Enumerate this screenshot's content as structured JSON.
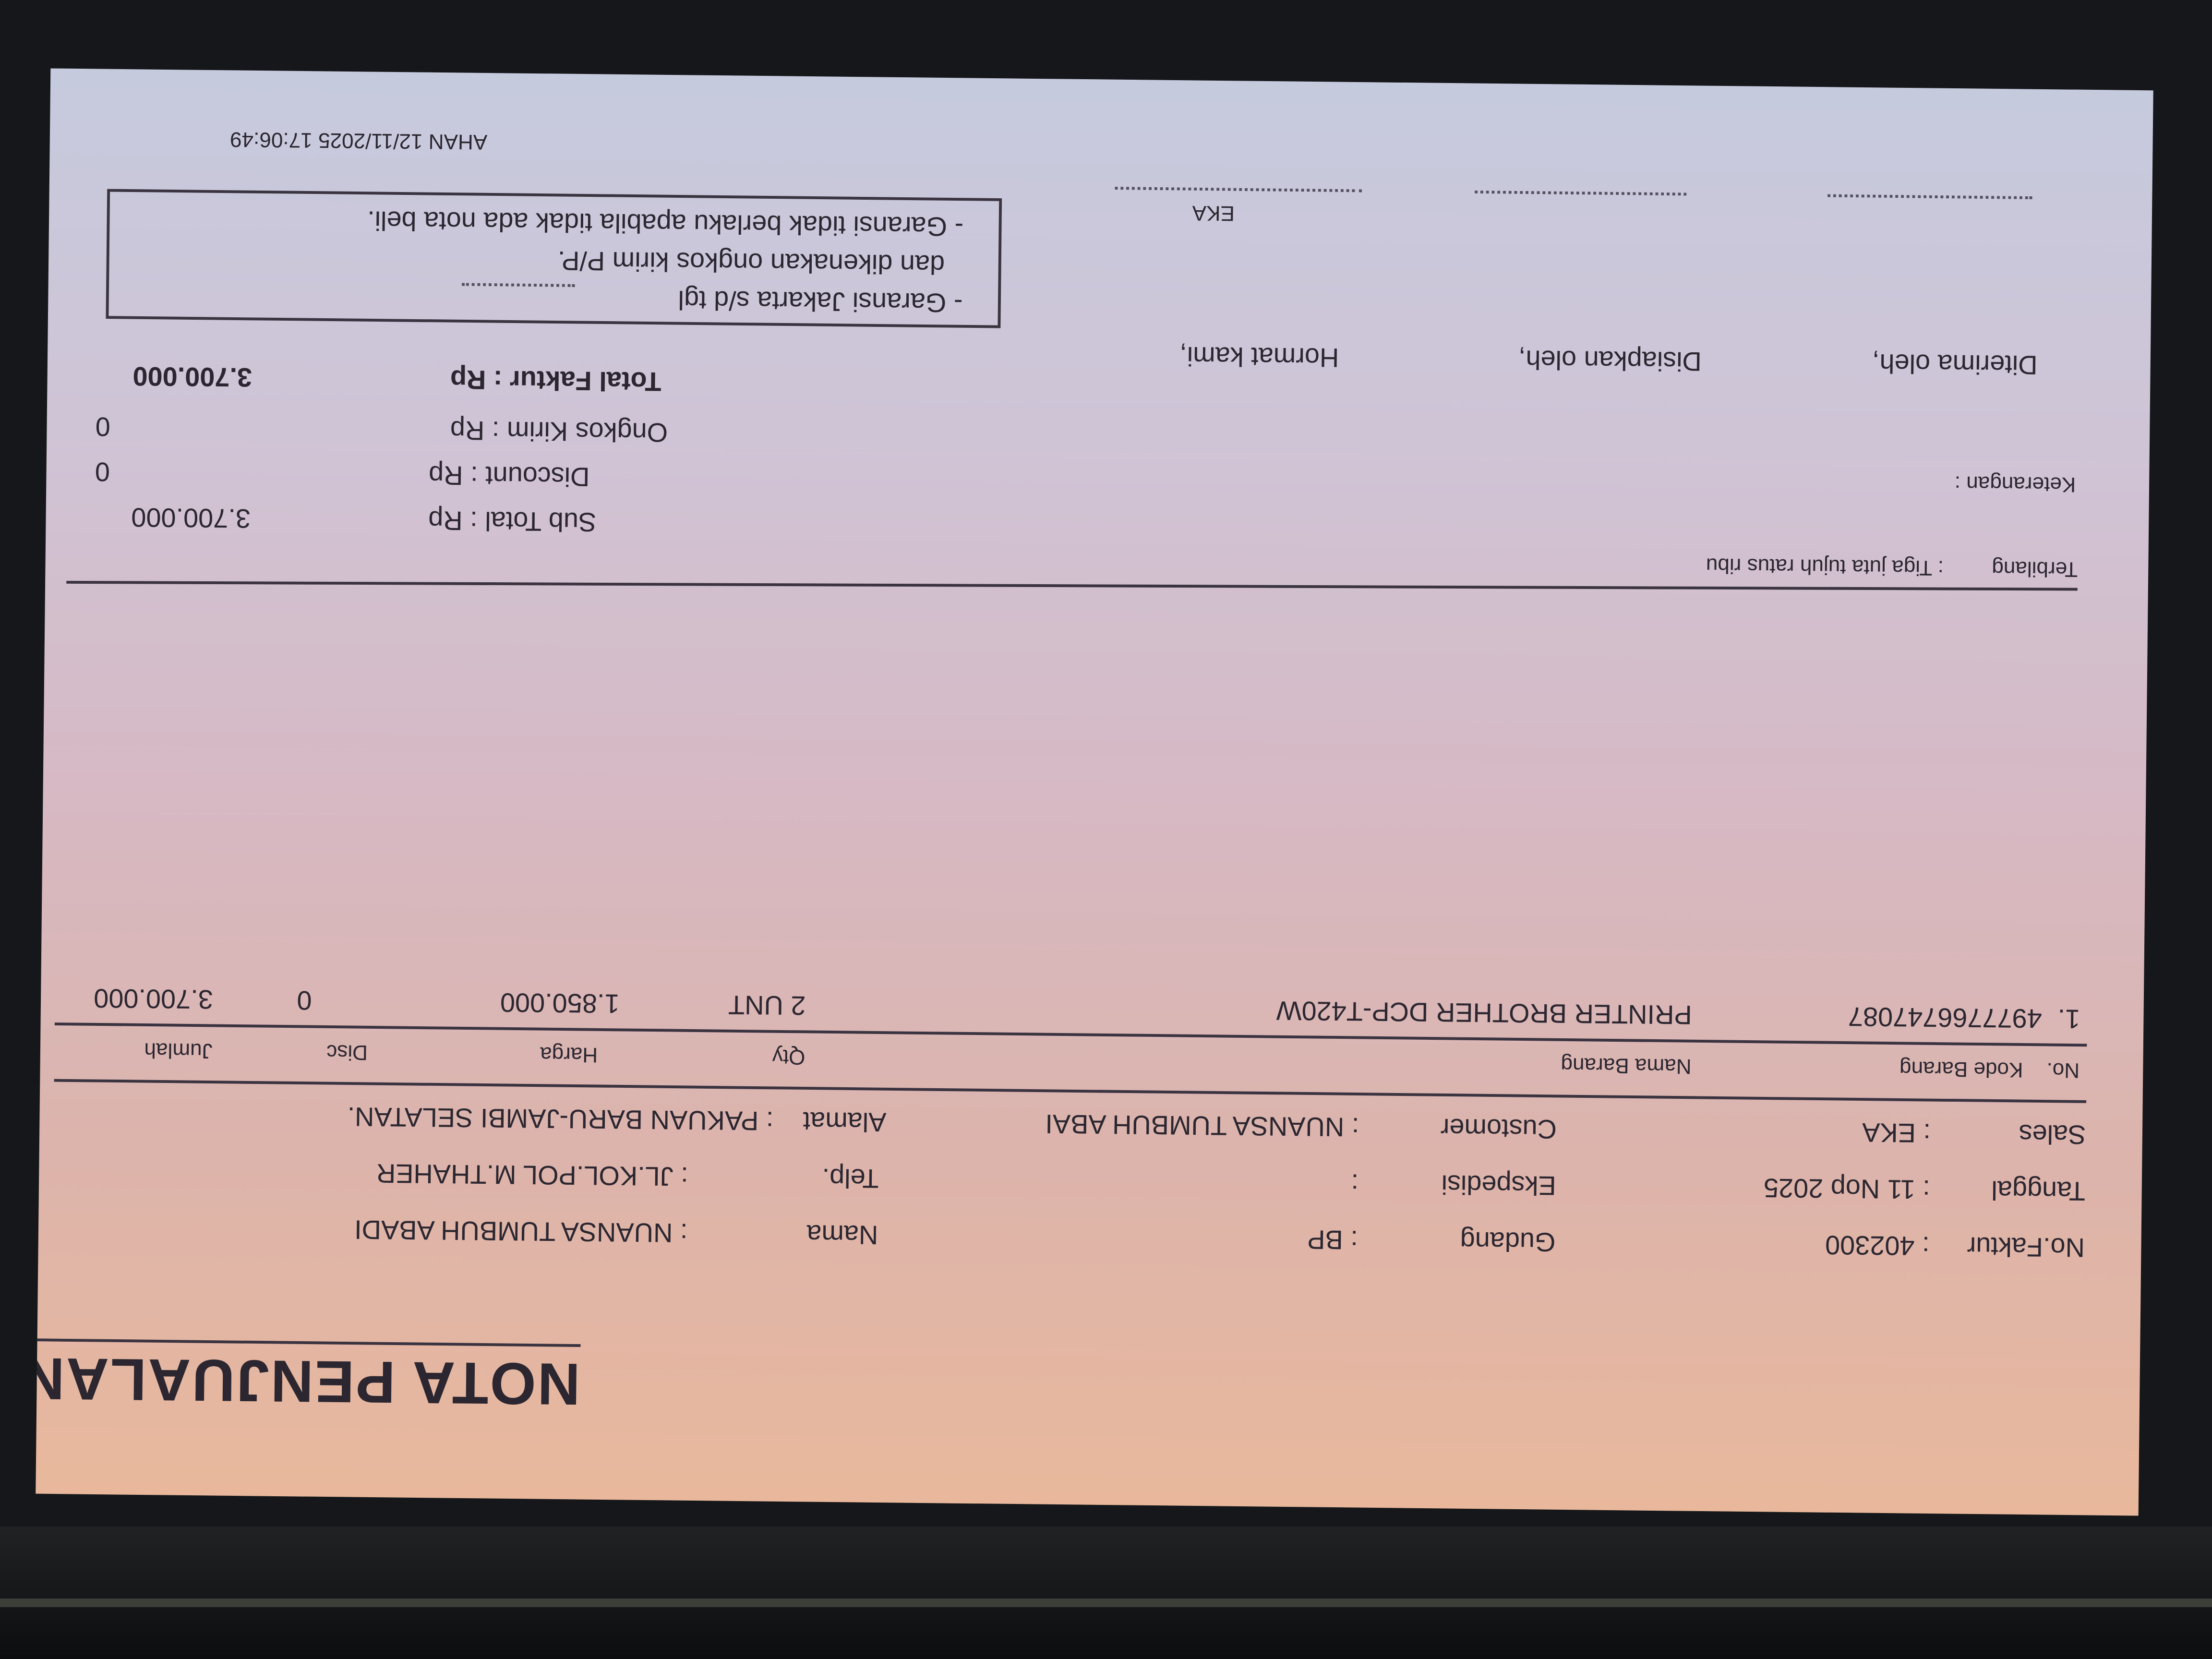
{
  "title": "NOTA PENJUALAN",
  "header": {
    "no_faktur": {
      "label": "No.Faktur",
      "value": ": 402300"
    },
    "gudang": {
      "label": "Gudang",
      "value": ": BP"
    },
    "nama": {
      "label": "Nama",
      "value": ": NUANSA TUMBUH ABADI"
    },
    "tanggal": {
      "label": "Tanggal",
      "value": ": 11 Nop 2025"
    },
    "ekspedisi": {
      "label": "Ekspedisi",
      "value": ":"
    },
    "telp": {
      "label": "Telp.",
      "value": ": JL.KOL.POL M.THAHER"
    },
    "sales": {
      "label": "Sales",
      "value": ": EKA"
    },
    "customer": {
      "label": "Customer",
      "value": ": NUANSA TUMBUH ABAI"
    },
    "alamat": {
      "label": "Alamat",
      "value": ": PAKUAN BARU-JAMBI SELATAN."
    }
  },
  "table": {
    "columns": [
      "No.",
      "Kode Barang",
      "Nama Barang",
      "Qty",
      "Harga",
      "Disc",
      "Jumlah"
    ],
    "rows": [
      {
        "no": "1.",
        "kode": "4977766747087",
        "nama": "PRINTER BROTHER DCP-T420W",
        "qty": "2 UNT",
        "harga": "1.850.000",
        "disc": "0",
        "jumlah": "3.700.000"
      }
    ]
  },
  "terbilang": {
    "label": "Terbilang",
    "value": ": Tiga juta tujuh ratus ribu"
  },
  "keterangan": {
    "label": "Keterangan :"
  },
  "totals": {
    "sub_total": {
      "label": "Sub Total : Rp",
      "value": "3.700.000"
    },
    "discount": {
      "label": "Discount : Rp",
      "value": "0"
    },
    "ongkos_kirim": {
      "label": "Ongkos Kirim : Rp",
      "value": "0"
    },
    "total_faktur": {
      "label": "Total Faktur : Rp",
      "value": "3.700.000"
    }
  },
  "signatures": {
    "diterima": "Diterima oleh,",
    "disiapkan": "Disiapkan oleh,",
    "hormat": "Hormat kami,",
    "hormat_name": "EKA"
  },
  "notes": {
    "line1": "- Garansi Jakarta s/d tgl",
    "line2": "dan dikenakan ongkos kirim P/P.",
    "line3": "- Garansi tidak berlaku apabila tidak ada nota beli."
  },
  "footer": "AHAN 12/11/2025 17:06:49",
  "colors": {
    "text": "#2b2630",
    "screen_top": "#e9b89c",
    "screen_bottom": "#c6cadd",
    "bezel": "#15171a"
  }
}
